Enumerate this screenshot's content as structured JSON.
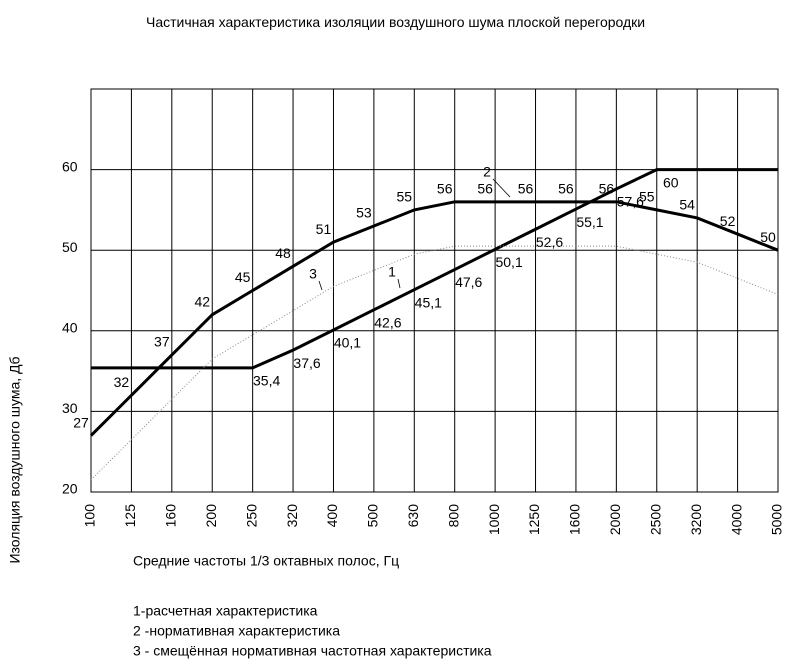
{
  "chart_data": {
    "type": "line",
    "title": "Частичная характеристика изоляции воздушного шума плоской перегородки",
    "x_label": "Средние частоты 1/3 октавных полос, Гц",
    "y_label": "Изоляция воздушного шума, Дб",
    "categories": [
      "100",
      "125",
      "160",
      "200",
      "250",
      "320",
      "400",
      "500",
      "630",
      "800",
      "1000",
      "1250",
      "1600",
      "2000",
      "2500",
      "3200",
      "4000",
      "5000"
    ],
    "ylim": [
      20,
      70
    ],
    "yticks": [
      20,
      30,
      40,
      50,
      60
    ],
    "grid": true,
    "series": [
      {
        "name": "1",
        "color": "#000000",
        "style": "solid",
        "values": [
          35.4,
          35.4,
          35.4,
          35.4,
          35.4,
          37.6,
          40.1,
          42.6,
          45.1,
          47.6,
          50.1,
          52.6,
          55.1,
          57.6,
          60,
          60,
          60,
          60
        ],
        "value_labels": [
          null,
          null,
          null,
          null,
          "35,4",
          "37,6",
          "40,1",
          "42,6",
          "45,1",
          "47,6",
          "50,1",
          "52,6",
          "55,1",
          "57,6",
          "60",
          null,
          null,
          null
        ]
      },
      {
        "name": "2",
        "color": "#000000",
        "style": "solid",
        "values": [
          27,
          32,
          37,
          42,
          45,
          48,
          51,
          53,
          55,
          56,
          56,
          56,
          56,
          56,
          55,
          54,
          52,
          50
        ]
      },
      {
        "name": "3",
        "color": "#888888",
        "style": "dotted",
        "values": [
          21.5,
          26.5,
          31.5,
          36.5,
          39.5,
          42.5,
          45.5,
          47.5,
          49.5,
          50.5,
          50.5,
          50.5,
          50.5,
          50.5,
          49.5,
          48.5,
          46.5,
          44.5
        ]
      }
    ],
    "legend": [
      "1-расчетная характеристика",
      "2 -нормативная характеристика",
      "3 - смещённая нормативная частотная характеристика"
    ]
  }
}
